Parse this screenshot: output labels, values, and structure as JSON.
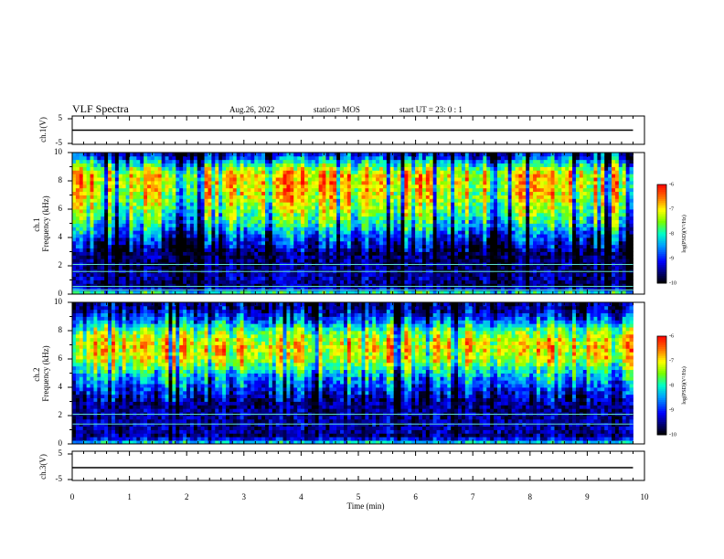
{
  "header": {
    "title": "VLF Spectra",
    "date": "Aug.26, 2022",
    "station": "station= MOS",
    "start": "start  UT =   23: 0  : 1"
  },
  "chart_data": [
    {
      "type": "line",
      "name": "ch.1 waveform",
      "ylabel": "ch.1(V)",
      "ylim": [
        -5,
        5
      ],
      "yticks": [
        "5",
        "-5"
      ],
      "xlim": [
        0,
        10
      ],
      "series": [
        {
          "values_description_level": 0,
          "x": [
            0,
            9.8
          ],
          "y": [
            0,
            0
          ]
        }
      ]
    },
    {
      "type": "heatmap",
      "name": "ch.1 spectrogram",
      "ylabel": "ch.1\nFrequency  (kHz)",
      "ylim": [
        0,
        10
      ],
      "yticks": [
        "0",
        "2",
        "4",
        "6",
        "8",
        "10"
      ],
      "xlim": [
        0,
        10
      ],
      "data_extent_x": [
        0,
        9.8
      ],
      "colorbar": {
        "range": [
          -10,
          -6
        ],
        "ticks": [
          "-6",
          "-7",
          "-8",
          "-9",
          "-10"
        ],
        "label": "log(PSD)(V²/Hz)"
      },
      "profile_freq": [
        0,
        0.5,
        1,
        2,
        3,
        4,
        5,
        6,
        7,
        8,
        8.5,
        9,
        9.5,
        10
      ],
      "profile_level": [
        -7.4,
        -9.7,
        -9.4,
        -9.6,
        -9.6,
        -8.9,
        -8.0,
        -7.5,
        -7.1,
        -6.9,
        -7.0,
        -7.6,
        -8.5,
        -9.2
      ],
      "lines_kHz": [
        0.3,
        0.55,
        1.6,
        2.1
      ]
    },
    {
      "type": "heatmap",
      "name": "ch.2 spectrogram",
      "ylabel": "ch.2\nFrequency  (kHz)",
      "ylim": [
        0,
        10
      ],
      "yticks": [
        "0",
        "2",
        "4",
        "6",
        "8",
        "10"
      ],
      "xlim": [
        0,
        10
      ],
      "data_extent_x": [
        0,
        9.8
      ],
      "colorbar": {
        "range": [
          -10,
          -6
        ],
        "ticks": [
          "-6",
          "-7",
          "-8",
          "-9",
          "-10"
        ],
        "label": "log(PSD)(V²/Hz)"
      },
      "profile_freq": [
        0,
        0.5,
        1,
        2,
        3,
        4,
        5,
        6,
        7,
        8,
        8.5,
        9,
        9.5,
        10
      ],
      "profile_level": [
        -7.8,
        -9.6,
        -9.4,
        -9.5,
        -9.5,
        -8.9,
        -8.2,
        -7.2,
        -7.0,
        -7.6,
        -8.4,
        -9.0,
        -9.4,
        -9.6
      ],
      "lines_kHz": [
        1.4,
        2.1
      ]
    },
    {
      "type": "line",
      "name": "ch.2 waveform",
      "ylabel": "ch.3(V)",
      "ylim": [
        -5,
        5
      ],
      "yticks": [
        "5",
        "-5"
      ],
      "xlim": [
        0,
        10
      ],
      "xlabel": "Time  (min)",
      "xticks": [
        "0",
        "1",
        "2",
        "3",
        "4",
        "5",
        "6",
        "7",
        "8",
        "9",
        "10"
      ],
      "series": [
        {
          "x": [
            0,
            9.8
          ],
          "y": [
            0,
            0
          ]
        }
      ]
    }
  ]
}
